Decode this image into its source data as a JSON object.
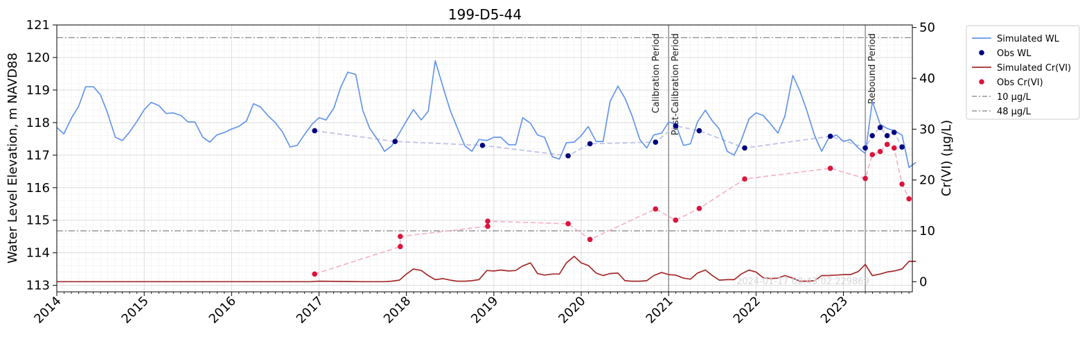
{
  "chart_data": {
    "type": "line",
    "title": "199-D5-44",
    "ylabel_left": "Water Level Elevation, m NAVD88",
    "ylabel_right": "Cr(VI) (µg/L)",
    "xlim": [
      "2014-01-01",
      "2023-10-15"
    ],
    "ylim_left": [
      112.8,
      121
    ],
    "ylim_right": [
      -2,
      50.5
    ],
    "x_ticks": [
      "2014",
      "2015",
      "2016",
      "2017",
      "2018",
      "2019",
      "2020",
      "2021",
      "2022",
      "2023"
    ],
    "y_ticks_left": [
      113,
      114,
      115,
      116,
      117,
      118,
      119,
      120,
      121
    ],
    "y_ticks_right": [
      0,
      10,
      20,
      30,
      40,
      50
    ],
    "grid": true,
    "legend_position": "outside-right",
    "colors": {
      "simulated_wl": "#6495ED",
      "obs_wl": "#000080",
      "simulated_cr": "#A52A2A",
      "obs_cr": "#DC143C",
      "obs_wl_trend": "#bfc2e6",
      "obs_cr_trend": "#f4b6c8",
      "threshold": "#808080",
      "period_line": "#808080"
    },
    "legend": [
      {
        "label": "Simulated WL",
        "style": "line",
        "color": "#6495ED"
      },
      {
        "label": "Obs WL",
        "style": "dot",
        "color": "#000080"
      },
      {
        "label": "Simulated Cr(VI)",
        "style": "line",
        "color": "#A52A2A"
      },
      {
        "label": "Obs Cr(VI)",
        "style": "dot",
        "color": "#DC143C"
      },
      {
        "label": "10 µg/L",
        "style": "dashdot",
        "color": "#808080"
      },
      {
        "label": "48 µg/L",
        "style": "dashdot",
        "color": "#808080"
      }
    ],
    "thresholds": [
      {
        "label": "10 µg/L",
        "value": 10
      },
      {
        "label": "48 µg/L",
        "value": 48
      }
    ],
    "periods": [
      {
        "date": "2021-01-01",
        "label_left": "Calibration Period",
        "label_right": "Post-Calibration Period"
      },
      {
        "date": "2023-04-01",
        "label_right": "Rebound Period"
      }
    ],
    "watermark": "2024-01-17 08:43:02.229869",
    "series": [
      {
        "name": "Simulated WL",
        "axis": "left",
        "x": [
          2014.0,
          2014.08,
          2014.17,
          2014.25,
          2014.33,
          2014.42,
          2014.5,
          2014.58,
          2014.67,
          2014.75,
          2014.83,
          2014.92,
          2015.0,
          2015.08,
          2015.17,
          2015.25,
          2015.33,
          2015.42,
          2015.5,
          2015.58,
          2015.67,
          2015.75,
          2015.83,
          2015.92,
          2016.0,
          2016.08,
          2016.17,
          2016.25,
          2016.33,
          2016.42,
          2016.5,
          2016.58,
          2016.67,
          2016.75,
          2016.83,
          2016.92,
          2017.0,
          2017.08,
          2017.17,
          2017.25,
          2017.33,
          2017.42,
          2017.5,
          2017.58,
          2017.67,
          2017.75,
          2017.83,
          2017.92,
          2018.0,
          2018.08,
          2018.17,
          2018.25,
          2018.33,
          2018.42,
          2018.5,
          2018.58,
          2018.67,
          2018.75,
          2018.83,
          2018.92,
          2019.0,
          2019.08,
          2019.17,
          2019.25,
          2019.33,
          2019.42,
          2019.5,
          2019.58,
          2019.67,
          2019.75,
          2019.83,
          2019.92,
          2020.0,
          2020.08,
          2020.17,
          2020.25,
          2020.33,
          2020.42,
          2020.5,
          2020.58,
          2020.67,
          2020.75,
          2020.83,
          2020.92,
          2021.0,
          2021.08,
          2021.17,
          2021.25,
          2021.33,
          2021.42,
          2021.5,
          2021.58,
          2021.67,
          2021.75,
          2021.83,
          2021.92,
          2022.0,
          2022.08,
          2022.17,
          2022.25,
          2022.33,
          2022.42,
          2022.5,
          2022.58,
          2022.67,
          2022.75,
          2022.83,
          2022.92,
          2023.0,
          2023.08,
          2023.17,
          2023.25,
          2023.33,
          2023.42,
          2023.5,
          2023.58,
          2023.67,
          2023.75,
          2023.83
        ],
        "values": [
          117.85,
          117.65,
          118.15,
          118.5,
          119.1,
          119.1,
          118.85,
          118.3,
          117.55,
          117.45,
          117.7,
          118.05,
          118.4,
          118.62,
          118.52,
          118.28,
          118.3,
          118.22,
          118.02,
          118.02,
          117.55,
          117.4,
          117.62,
          117.7,
          117.8,
          117.88,
          118.05,
          118.58,
          118.48,
          118.2,
          118.0,
          117.72,
          117.25,
          117.3,
          117.62,
          117.95,
          118.15,
          118.08,
          118.45,
          119.1,
          119.55,
          119.48,
          118.38,
          117.82,
          117.48,
          117.12,
          117.28,
          117.68,
          118.05,
          118.4,
          118.08,
          118.35,
          119.9,
          119.08,
          118.38,
          117.85,
          117.28,
          117.12,
          117.48,
          117.45,
          117.55,
          117.55,
          117.32,
          117.32,
          118.15,
          117.98,
          117.62,
          117.55,
          116.95,
          116.88,
          117.38,
          117.4,
          117.6,
          117.88,
          117.42,
          117.42,
          118.65,
          119.12,
          118.75,
          118.22,
          117.48,
          117.22,
          117.62,
          117.68,
          118.02,
          117.95,
          117.3,
          117.35,
          118.02,
          118.38,
          118.05,
          117.8,
          117.12,
          117.0,
          117.45,
          118.12,
          118.3,
          118.22,
          117.95,
          117.68,
          118.2,
          119.45,
          118.98,
          118.38,
          117.6,
          117.12,
          117.52,
          117.62,
          117.42,
          117.48,
          117.22,
          117.05,
          118.65,
          117.95,
          117.82,
          117.75,
          117.62,
          116.62,
          116.78
        ]
      },
      {
        "name": "Obs WL",
        "axis": "left",
        "x": [
          2016.95,
          2017.87,
          2018.87,
          2019.85,
          2020.1,
          2020.85,
          2021.08,
          2021.35,
          2021.87,
          2022.85,
          2023.25,
          2023.33,
          2023.42,
          2023.5,
          2023.58,
          2023.67
        ],
        "values": [
          117.75,
          117.42,
          117.3,
          116.98,
          117.35,
          117.4,
          117.9,
          117.75,
          117.22,
          117.58,
          117.22,
          117.6,
          117.85,
          117.6,
          117.7,
          117.25
        ]
      },
      {
        "name": "Simulated Cr(VI)",
        "axis": "right",
        "x": [
          2014.0,
          2016.9,
          2017.0,
          2017.5,
          2017.75,
          2017.83,
          2017.92,
          2018.0,
          2018.08,
          2018.17,
          2018.25,
          2018.33,
          2018.42,
          2018.5,
          2018.58,
          2018.67,
          2018.75,
          2018.83,
          2018.92,
          2019.0,
          2019.08,
          2019.17,
          2019.25,
          2019.33,
          2019.42,
          2019.5,
          2019.58,
          2019.67,
          2019.75,
          2019.83,
          2019.92,
          2020.0,
          2020.08,
          2020.17,
          2020.25,
          2020.33,
          2020.42,
          2020.5,
          2020.58,
          2020.67,
          2020.75,
          2020.83,
          2020.92,
          2021.0,
          2021.08,
          2021.17,
          2021.25,
          2021.33,
          2021.42,
          2021.5,
          2021.58,
          2021.67,
          2021.75,
          2021.83,
          2021.92,
          2022.0,
          2022.08,
          2022.17,
          2022.25,
          2022.33,
          2022.42,
          2022.5,
          2022.58,
          2022.67,
          2022.75,
          2022.83,
          2022.92,
          2023.0,
          2023.08,
          2023.17,
          2023.25,
          2023.33,
          2023.42,
          2023.5,
          2023.58,
          2023.67,
          2023.75,
          2023.83
        ],
        "values": [
          0.0,
          0.0,
          0.1,
          0.0,
          0.0,
          0.1,
          0.3,
          1.5,
          2.5,
          2.2,
          1.2,
          0.4,
          0.6,
          0.3,
          0.1,
          0.1,
          0.2,
          0.4,
          2.2,
          2.1,
          2.3,
          2.1,
          2.2,
          3.1,
          3.7,
          1.6,
          1.3,
          1.5,
          1.5,
          3.7,
          5.0,
          3.7,
          3.2,
          1.7,
          1.2,
          1.6,
          1.7,
          0.2,
          0.1,
          0.1,
          0.2,
          1.2,
          1.8,
          1.4,
          1.3,
          0.7,
          0.5,
          1.7,
          2.3,
          1.2,
          0.3,
          0.4,
          0.4,
          1.5,
          2.3,
          1.9,
          0.8,
          0.6,
          0.7,
          1.2,
          0.7,
          0.1,
          0.1,
          0.2,
          1.2,
          1.2,
          1.3,
          1.4,
          1.4,
          2.0,
          3.4,
          1.2,
          1.5,
          1.9,
          2.1,
          2.5,
          4.0,
          4.0
        ]
      },
      {
        "name": "Obs Cr(VI)",
        "axis": "right",
        "x": [
          2016.95,
          2017.93,
          2017.93,
          2018.93,
          2018.93,
          2019.85,
          2020.1,
          2020.85,
          2021.08,
          2021.35,
          2021.87,
          2022.85,
          2023.25,
          2023.33,
          2023.42,
          2023.5,
          2023.58,
          2023.67,
          2023.75
        ],
        "values": [
          1.5,
          6.9,
          8.9,
          10.9,
          11.9,
          11.4,
          8.3,
          14.3,
          12.1,
          14.4,
          20.2,
          22.3,
          20.3,
          25.0,
          25.6,
          27.0,
          26.3,
          19.2,
          16.3
        ]
      }
    ]
  }
}
